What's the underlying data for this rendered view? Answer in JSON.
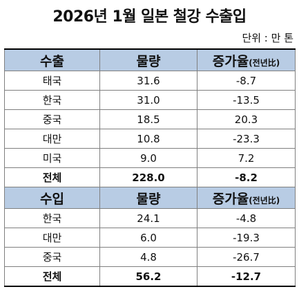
{
  "title": "2026년 1월 일본 철강 수출입",
  "unit": "단위 : 만 톤",
  "export": {
    "headers": {
      "category": "수출",
      "volume": "물량",
      "change": "증가율",
      "change_sub": "(전년比)"
    },
    "rows": [
      {
        "country": "태국",
        "volume": "31.6",
        "change": "-8.7"
      },
      {
        "country": "한국",
        "volume": "31.0",
        "change": "-13.5"
      },
      {
        "country": "중국",
        "volume": "18.5",
        "change": "20.3"
      },
      {
        "country": "대만",
        "volume": "10.8",
        "change": "-23.3"
      },
      {
        "country": "미국",
        "volume": "9.0",
        "change": "7.2"
      }
    ],
    "total": {
      "country": "전체",
      "volume": "228.0",
      "change": "-8.2"
    }
  },
  "import": {
    "headers": {
      "category": "수입",
      "volume": "물량",
      "change": "증가율",
      "change_sub": "(전년比)"
    },
    "rows": [
      {
        "country": "한국",
        "volume": "24.1",
        "change": "-4.8"
      },
      {
        "country": "대만",
        "volume": "6.0",
        "change": "-19.3"
      },
      {
        "country": "중국",
        "volume": "4.8",
        "change": "-26.7"
      }
    ],
    "total": {
      "country": "전체",
      "volume": "56.2",
      "change": "-12.7"
    }
  }
}
